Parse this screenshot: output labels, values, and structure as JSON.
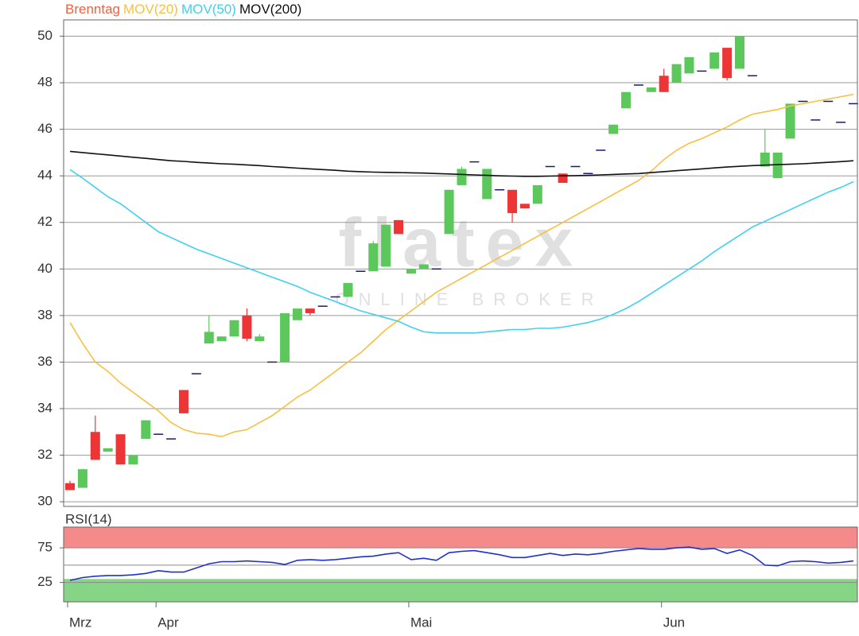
{
  "chart_data": [
    {
      "type": "candlestick",
      "title": "Brenntag",
      "title_color": "#f06040",
      "watermark": "flatex",
      "watermark_sub": "ONLINE BROKER",
      "categories": [
        "Mrz",
        null,
        null,
        null,
        null,
        null,
        null,
        "Apr",
        null,
        null,
        null,
        null,
        null,
        null,
        null,
        null,
        null,
        null,
        null,
        null,
        null,
        null,
        null,
        null,
        null,
        null,
        null,
        "Mai",
        null,
        null,
        null,
        null,
        null,
        null,
        null,
        null,
        null,
        null,
        null,
        null,
        null,
        null,
        null,
        null,
        null,
        null,
        null,
        "Jun",
        null,
        null,
        null,
        null,
        null,
        null,
        null,
        null,
        null,
        null,
        null,
        null,
        null,
        null,
        null
      ],
      "open": [
        30.8,
        30.6,
        33.0,
        32.15,
        32.9,
        31.6,
        32.7,
        32.9,
        32.7,
        34.8,
        35.5,
        36.8,
        36.9,
        37.1,
        38.0,
        36.9,
        36.0,
        36.0,
        37.8,
        38.3,
        38.4,
        38.8,
        38.8,
        39.9,
        39.9,
        40.1,
        42.1,
        39.8,
        40.0,
        40.0,
        41.5,
        43.6,
        44.6,
        43.0,
        43.4,
        43.4,
        42.8,
        42.8,
        44.4,
        44.1,
        44.4,
        44.1,
        45.1,
        45.8,
        46.9,
        47.9,
        47.6,
        48.3,
        48.0,
        48.4,
        48.5,
        48.6,
        49.5,
        48.6,
        48.3,
        44.4,
        43.9,
        45.6,
        47.2,
        46.4,
        47.2,
        46.3,
        47.1
      ],
      "high": [
        30.9,
        31.4,
        33.7,
        32.3,
        32.9,
        32.0,
        33.5,
        32.9,
        32.7,
        34.8,
        35.5,
        38.0,
        37.1,
        37.8,
        38.3,
        37.2,
        36.0,
        38.1,
        38.3,
        38.3,
        38.4,
        38.8,
        39.4,
        39.9,
        41.2,
        41.9,
        42.1,
        40.0,
        40.2,
        40.0,
        43.4,
        44.4,
        44.6,
        44.3,
        43.4,
        43.4,
        42.8,
        43.6,
        44.4,
        44.1,
        44.4,
        44.1,
        45.1,
        46.2,
        47.6,
        47.9,
        47.8,
        48.6,
        48.8,
        49.1,
        48.5,
        49.3,
        49.5,
        50.0,
        48.3,
        46.0,
        45.0,
        47.1,
        47.2,
        46.4,
        47.2,
        46.3,
        47.1
      ],
      "low": [
        30.5,
        30.6,
        31.8,
        32.15,
        31.6,
        31.6,
        32.7,
        32.9,
        32.7,
        33.8,
        35.5,
        36.8,
        36.9,
        37.1,
        36.9,
        36.9,
        36.0,
        36.0,
        37.8,
        38.0,
        38.4,
        38.8,
        38.8,
        39.9,
        39.9,
        40.1,
        41.5,
        39.8,
        40.0,
        40.0,
        41.5,
        43.6,
        44.6,
        43.0,
        43.4,
        42.0,
        42.6,
        42.8,
        44.4,
        43.7,
        44.4,
        44.1,
        45.1,
        45.8,
        46.9,
        47.9,
        47.6,
        47.6,
        48.0,
        48.4,
        48.5,
        48.6,
        48.1,
        48.6,
        48.3,
        44.4,
        43.9,
        45.6,
        47.2,
        46.4,
        47.2,
        46.3,
        47.1
      ],
      "close": [
        30.5,
        31.4,
        31.8,
        32.3,
        31.6,
        32.0,
        33.5,
        32.9,
        32.7,
        33.8,
        35.5,
        37.3,
        37.1,
        37.8,
        37.0,
        37.1,
        36.0,
        38.1,
        38.3,
        38.1,
        38.4,
        38.8,
        39.4,
        39.9,
        41.1,
        41.9,
        41.5,
        40.0,
        40.2,
        40.0,
        43.4,
        44.3,
        44.6,
        44.3,
        43.4,
        42.4,
        42.6,
        43.6,
        44.4,
        43.7,
        44.4,
        44.1,
        45.1,
        46.2,
        47.6,
        47.9,
        47.8,
        47.6,
        48.8,
        49.1,
        48.5,
        49.3,
        48.2,
        50.0,
        48.3,
        45.0,
        45.0,
        47.1,
        47.2,
        46.4,
        47.2,
        46.3,
        47.1
      ],
      "up_color": "#5cc85c",
      "down_color": "#ee3535",
      "flat_color": "#1a1a6e",
      "series": [
        {
          "name": "MOV(20)",
          "color": "#f8c040",
          "values": [
            37.7,
            36.8,
            36.0,
            35.6,
            35.1,
            34.7,
            34.3,
            33.9,
            33.4,
            33.1,
            32.95,
            32.9,
            32.8,
            33.0,
            33.1,
            33.4,
            33.7,
            34.1,
            34.5,
            34.8,
            35.2,
            35.6,
            36.0,
            36.4,
            36.9,
            37.4,
            37.8,
            38.2,
            38.6,
            39.0,
            39.3,
            39.6,
            39.9,
            40.2,
            40.5,
            40.8,
            41.1,
            41.4,
            41.7,
            42.0,
            42.3,
            42.6,
            42.9,
            43.2,
            43.5,
            43.8,
            44.2,
            44.7,
            45.1,
            45.4,
            45.6,
            45.85,
            46.1,
            46.4,
            46.65,
            46.75,
            46.85,
            47.0,
            47.1,
            47.2,
            47.3,
            47.4,
            47.5
          ]
        },
        {
          "name": "MOV(50)",
          "color": "#40d0f0",
          "values": [
            44.27,
            43.9,
            43.5,
            43.1,
            42.8,
            42.4,
            42.0,
            41.6,
            41.35,
            41.1,
            40.85,
            40.65,
            40.45,
            40.25,
            40.05,
            39.85,
            39.65,
            39.45,
            39.25,
            39.0,
            38.8,
            38.6,
            38.4,
            38.2,
            38.05,
            37.9,
            37.75,
            37.5,
            37.3,
            37.25,
            37.25,
            37.25,
            37.25,
            37.3,
            37.35,
            37.4,
            37.4,
            37.45,
            37.45,
            37.5,
            37.6,
            37.7,
            37.85,
            38.05,
            38.3,
            38.6,
            38.95,
            39.3,
            39.65,
            40.0,
            40.35,
            40.75,
            41.1,
            41.45,
            41.8,
            42.05,
            42.3,
            42.55,
            42.8,
            43.05,
            43.3,
            43.5,
            43.75
          ]
        },
        {
          "name": "MOV(200)",
          "color": "#111111",
          "values": [
            45.05,
            45.0,
            44.95,
            44.9,
            44.85,
            44.8,
            44.75,
            44.7,
            44.65,
            44.62,
            44.58,
            44.55,
            44.52,
            44.5,
            44.47,
            44.44,
            44.4,
            44.37,
            44.33,
            44.3,
            44.27,
            44.24,
            44.2,
            44.18,
            44.16,
            44.15,
            44.14,
            44.13,
            44.12,
            44.1,
            44.08,
            44.06,
            44.04,
            44.02,
            44.0,
            43.99,
            43.98,
            43.98,
            43.99,
            44.0,
            44.01,
            44.02,
            44.04,
            44.06,
            44.08,
            44.1,
            44.14,
            44.18,
            44.22,
            44.26,
            44.3,
            44.34,
            44.38,
            44.41,
            44.44,
            44.46,
            44.48,
            44.5,
            44.52,
            44.55,
            44.58,
            44.61,
            44.65
          ]
        }
      ],
      "ylim": [
        29.8,
        50.7
      ],
      "yticks": [
        30,
        32,
        34,
        36,
        38,
        40,
        42,
        44,
        46,
        48,
        50
      ],
      "grid": true
    },
    {
      "type": "line",
      "series": [
        {
          "name": "RSI(14)",
          "color": "#2030d0",
          "values": [
            28,
            32,
            34,
            35,
            35,
            36,
            38,
            42,
            40,
            40,
            46,
            52,
            55,
            55,
            56,
            55,
            54,
            51,
            57,
            58,
            57,
            58,
            60,
            62,
            63,
            66,
            68,
            58,
            60,
            57,
            68,
            70,
            71,
            68,
            65,
            61,
            61,
            64,
            67,
            64,
            66,
            65,
            67,
            70,
            72,
            74,
            73,
            73,
            75,
            76,
            73,
            74,
            67,
            72,
            64,
            50,
            49,
            55,
            56,
            55,
            53,
            54,
            56
          ]
        }
      ],
      "zones": [
        {
          "from": 75,
          "to": 105,
          "color": "#f58a8a"
        },
        {
          "from": -3,
          "to": 30,
          "color": "#86d486"
        }
      ],
      "ylim": [
        -3,
        105
      ],
      "yticks": [
        25,
        75
      ],
      "ygrid": [
        25,
        50,
        75
      ]
    }
  ]
}
